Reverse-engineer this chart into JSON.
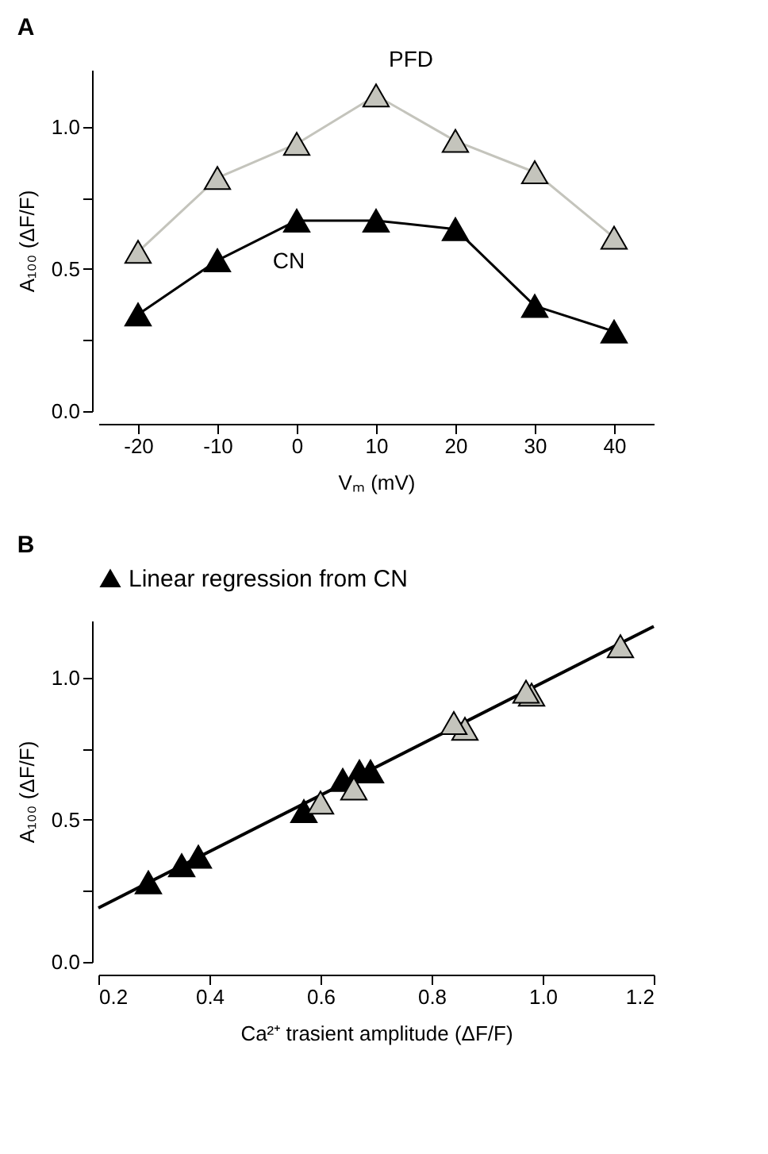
{
  "chart_data": [
    {
      "type": "line",
      "title": "A",
      "xlabel": "Vₘ (mV)",
      "ylabel": "A₁₀₀ (ΔF/F)",
      "x": [
        -20,
        -10,
        0,
        10,
        20,
        30,
        40
      ],
      "marker": "triangle",
      "line_style": "solid",
      "legend": false,
      "grid": false,
      "xlim": [
        -25,
        45
      ],
      "xticks": [
        -20,
        -10,
        0,
        10,
        20,
        30,
        40
      ],
      "ylim": [
        0,
        1.2
      ],
      "yticks": [
        {
          "value": 0,
          "label": "0.0"
        },
        {
          "value": 0.25,
          "label": null
        },
        {
          "value": 0.5,
          "label": "0.5"
        },
        {
          "value": 0.75,
          "label": null
        },
        {
          "value": 1,
          "label": "1.0"
        }
      ],
      "series": [
        {
          "name": "PFD",
          "color": "#c4c4bc",
          "values": [
            0.56,
            0.82,
            0.94,
            1.11,
            0.95,
            0.84,
            0.61
          ]
        },
        {
          "name": "CN",
          "color": "#000000",
          "values": [
            0.34,
            0.53,
            0.67,
            0.67,
            0.64,
            0.37,
            0.28
          ]
        }
      ]
    },
    {
      "type": "scatter",
      "title": "B",
      "xlabel": "Ca²⁺ trasient amplitude (ΔF/F)",
      "ylabel": "A₁₀₀ (ΔF/F)",
      "marker": "triangle",
      "legend": "top",
      "grid": false,
      "xlim": [
        0.2,
        1.2
      ],
      "xticks": [
        0.2,
        0.4,
        0.6,
        0.8,
        {
          "value": 1,
          "label": "1.0"
        },
        1.2
      ],
      "ylim": [
        0,
        1.2
      ],
      "yticks": [
        {
          "value": 0,
          "label": "0.0"
        },
        {
          "value": 0.25,
          "label": null
        },
        {
          "value": 0.5,
          "label": "0.5"
        },
        {
          "value": 0.75,
          "label": null
        },
        {
          "value": 1,
          "label": "1.0"
        }
      ],
      "series": [
        {
          "name": "Linear regression from CN",
          "type": "line",
          "marker": "none",
          "line_style": "solid",
          "color": "#000000",
          "x": [
            0.2,
            1.2
          ],
          "values": [
            0.19,
            1.18
          ]
        },
        {
          "color": "#000000",
          "x": [
            0.35,
            0.57,
            0.69,
            0.67,
            0.64,
            0.38,
            0.29
          ],
          "values": [
            0.34,
            0.53,
            0.67,
            0.67,
            0.64,
            0.37,
            0.28
          ]
        },
        {
          "color": "#c4c4bc",
          "x": [
            0.6,
            0.86,
            0.98,
            1.14,
            0.97,
            0.84,
            0.66
          ],
          "values": [
            0.56,
            0.82,
            0.94,
            1.11,
            0.95,
            0.84,
            0.61
          ]
        }
      ]
    }
  ]
}
